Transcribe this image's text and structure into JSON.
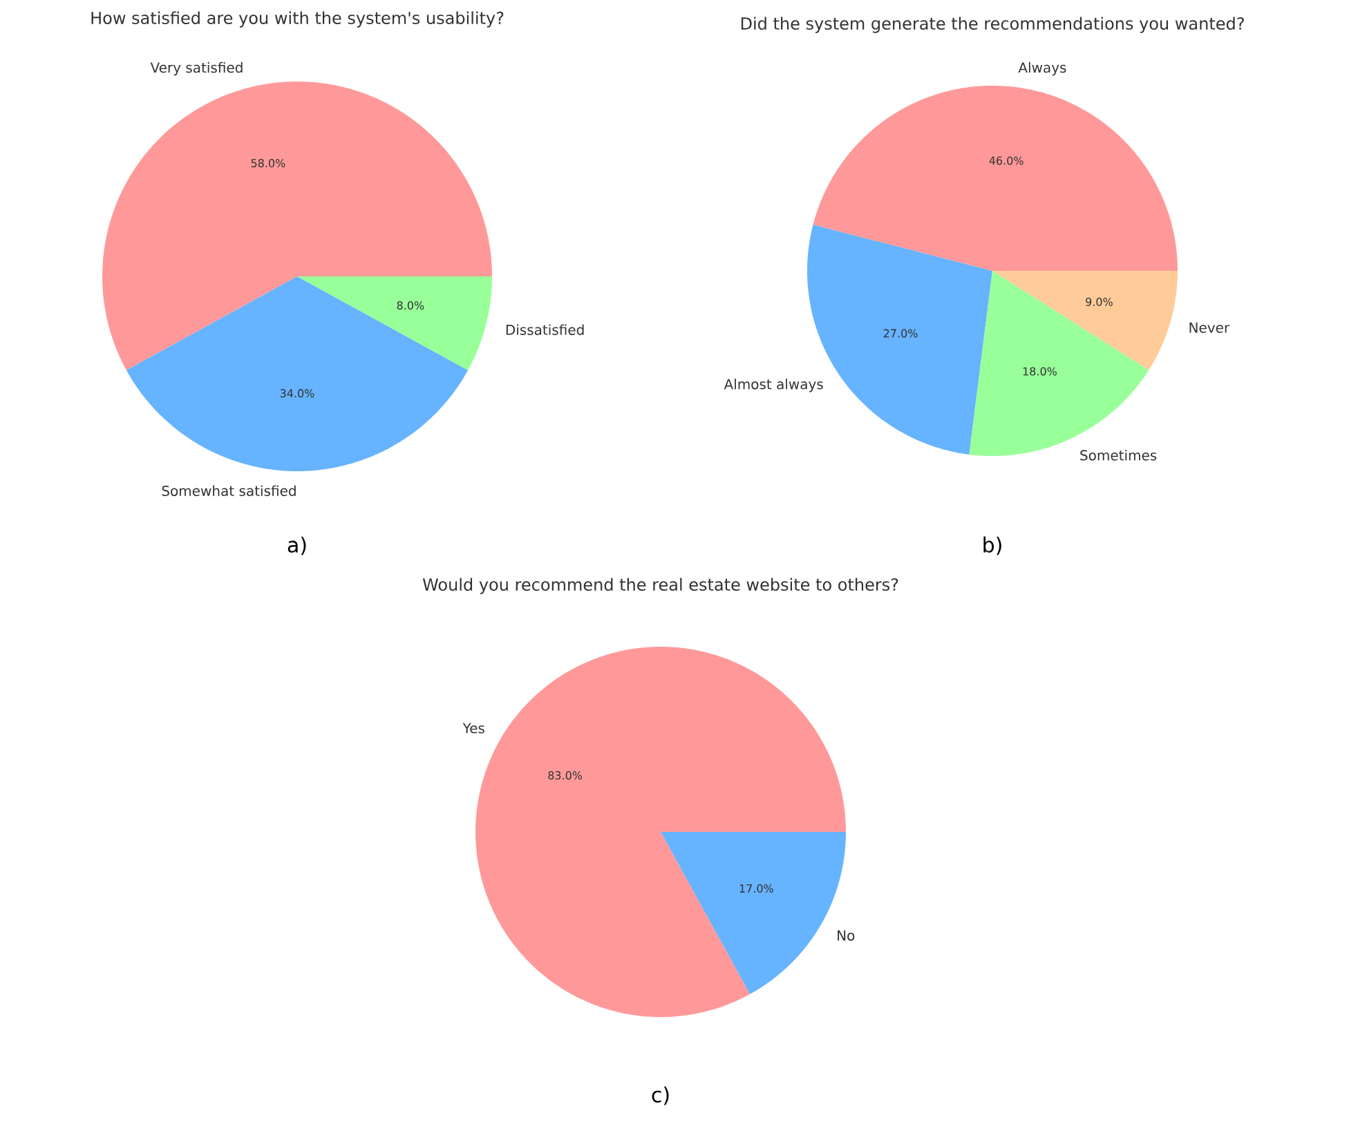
{
  "chart_data": [
    {
      "type": "pie",
      "title": "How satisfied are you with the system's usability?",
      "categories": [
        "Very satisfied",
        "Somewhat satisfied",
        "Dissatisfied"
      ],
      "values": [
        58,
        34,
        8
      ],
      "colors": [
        "#ff9999",
        "#66b3ff",
        "#99ff99"
      ],
      "value_labels": [
        "58.0%",
        "34.0%",
        "8.0%"
      ],
      "annotations": [
        "a)"
      ]
    },
    {
      "type": "pie",
      "title": "Did the system generate the recommendations you wanted?",
      "categories": [
        "Always",
        "Almost always",
        "Sometimes",
        "Never"
      ],
      "values": [
        46,
        27,
        18,
        9
      ],
      "colors": [
        "#ff9999",
        "#66b3ff",
        "#99ff99",
        "#ffcc99"
      ],
      "value_labels": [
        "46.0%",
        "27.0%",
        "18.0%",
        "9.0%"
      ],
      "annotations": [
        "b)"
      ]
    },
    {
      "type": "pie",
      "title": "Would you recommend the real estate website to others?",
      "categories": [
        "Yes",
        "No"
      ],
      "values": [
        83,
        17
      ],
      "colors": [
        "#ff9999",
        "#66b3ff"
      ],
      "value_labels": [
        "83.0%",
        "17.0%"
      ],
      "annotations": [
        "c)"
      ]
    }
  ]
}
